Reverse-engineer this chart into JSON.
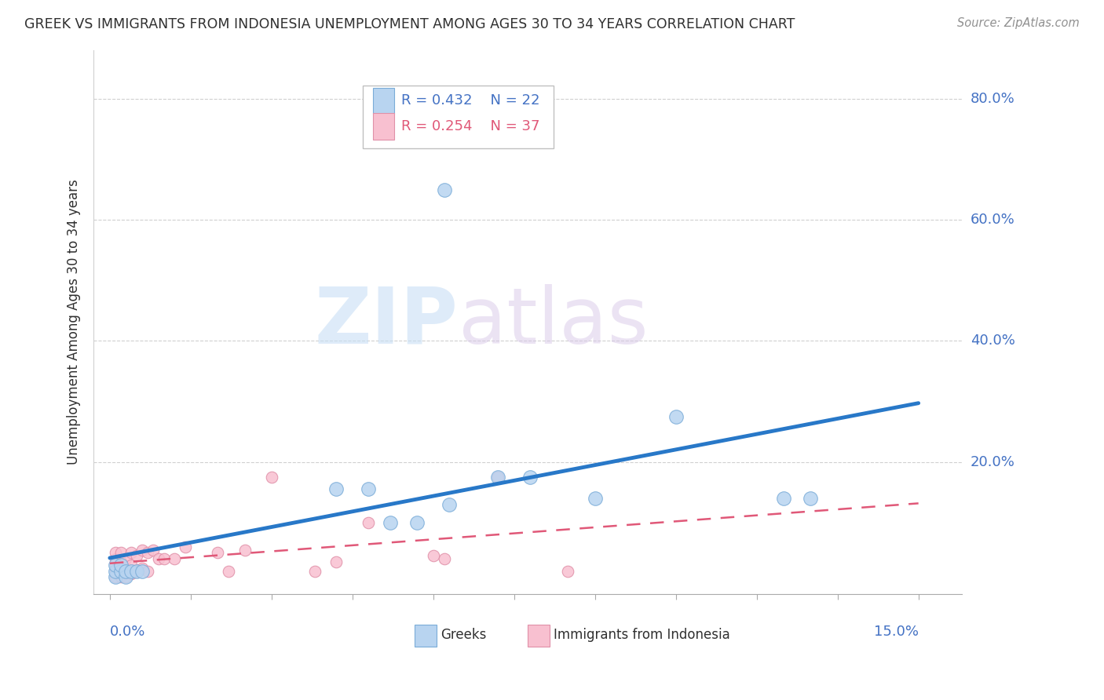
{
  "title": "GREEK VS IMMIGRANTS FROM INDONESIA UNEMPLOYMENT AMONG AGES 30 TO 34 YEARS CORRELATION CHART",
  "source": "Source: ZipAtlas.com",
  "ylabel": "Unemployment Among Ages 30 to 34 years",
  "watermark": "ZIPatlas",
  "blue_scatter_x": [
    0.001,
    0.001,
    0.001,
    0.002,
    0.002,
    0.003,
    0.003,
    0.004,
    0.005,
    0.006,
    0.042,
    0.048,
    0.052,
    0.057,
    0.062,
    0.063,
    0.072,
    0.078,
    0.09,
    0.105,
    0.125,
    0.13
  ],
  "blue_scatter_y": [
    0.01,
    0.02,
    0.03,
    0.02,
    0.03,
    0.01,
    0.02,
    0.02,
    0.02,
    0.02,
    0.155,
    0.155,
    0.1,
    0.1,
    0.65,
    0.13,
    0.175,
    0.175,
    0.14,
    0.275,
    0.14,
    0.14
  ],
  "pink_scatter_x": [
    0.001,
    0.001,
    0.001,
    0.001,
    0.001,
    0.002,
    0.002,
    0.002,
    0.002,
    0.003,
    0.003,
    0.003,
    0.004,
    0.004,
    0.004,
    0.005,
    0.005,
    0.006,
    0.006,
    0.007,
    0.007,
    0.008,
    0.009,
    0.01,
    0.012,
    0.014,
    0.02,
    0.022,
    0.025,
    0.03,
    0.038,
    0.042,
    0.048,
    0.06,
    0.062,
    0.072,
    0.085
  ],
  "pink_scatter_y": [
    0.01,
    0.02,
    0.03,
    0.04,
    0.05,
    0.01,
    0.02,
    0.035,
    0.05,
    0.01,
    0.025,
    0.04,
    0.015,
    0.03,
    0.05,
    0.02,
    0.045,
    0.025,
    0.055,
    0.02,
    0.05,
    0.055,
    0.04,
    0.04,
    0.04,
    0.06,
    0.05,
    0.02,
    0.055,
    0.175,
    0.02,
    0.035,
    0.1,
    0.045,
    0.04,
    0.175,
    0.02
  ],
  "ytick_labels": [
    "20.0%",
    "40.0%",
    "60.0%",
    "80.0%"
  ],
  "ytick_values": [
    0.2,
    0.4,
    0.6,
    0.8
  ],
  "xlim": [
    0.0,
    0.15
  ],
  "ylim": [
    0.0,
    0.88
  ],
  "blue_scatter_color": "#b8d4f0",
  "blue_edge_color": "#7aacd8",
  "pink_scatter_color": "#f8c0d0",
  "pink_edge_color": "#e090a8",
  "blue_line_color": "#2878c8",
  "pink_line_color": "#e05878",
  "grid_color": "#d0d0d0",
  "axis_color": "#4472C4",
  "title_color": "#303030",
  "source_color": "#909090",
  "legend_R_blue": "R = 0.432",
  "legend_N_blue": "N = 22",
  "legend_R_pink": "R = 0.254",
  "legend_N_pink": "N = 37",
  "legend_label_blue": "Greeks",
  "legend_label_pink": "Immigrants from Indonesia"
}
